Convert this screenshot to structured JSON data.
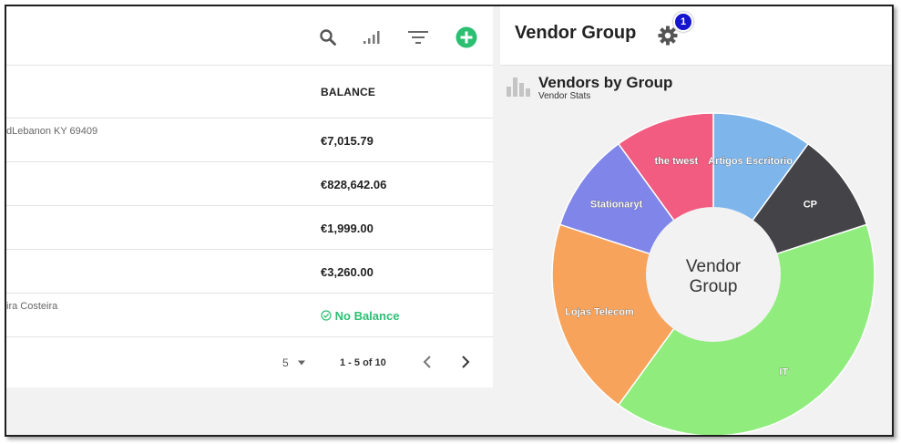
{
  "table": {
    "balance_header": "BALANCE",
    "rows": [
      {
        "address": "dLebanon KY 69409",
        "balance": "€7,015.79"
      },
      {
        "address": "",
        "balance": "€828,642.06"
      },
      {
        "address": "",
        "balance": "€1,999.00"
      },
      {
        "address": "",
        "balance": "€3,260.00"
      },
      {
        "address": "ira Costeira",
        "balance": "No Balance"
      }
    ]
  },
  "pager": {
    "per_page": "5",
    "range": "1 - 5 of 10"
  },
  "panel": {
    "title": "Vendor Group",
    "badge": "1"
  },
  "colors": {
    "accent_green": "#2bbf72",
    "badge_blue": "#1515cc"
  },
  "chart_data": {
    "type": "pie",
    "title": "Vendors by Group",
    "subtitle": "Vendor Stats",
    "center_label": [
      "Vendor",
      "Group"
    ],
    "slices": [
      {
        "label": "Artigos Escritorio",
        "value": 1,
        "color": "#7eb6ec"
      },
      {
        "label": "CP",
        "value": 1,
        "color": "#434348"
      },
      {
        "label": "IT",
        "value": 4,
        "color": "#90ed7d"
      },
      {
        "label": "Lojas Telecom",
        "value": 2,
        "color": "#f7a35c"
      },
      {
        "label": "Stationaryt",
        "value": 1,
        "color": "#8085e9"
      },
      {
        "label": "the twest",
        "value": 1,
        "color": "#f15c80"
      }
    ]
  }
}
